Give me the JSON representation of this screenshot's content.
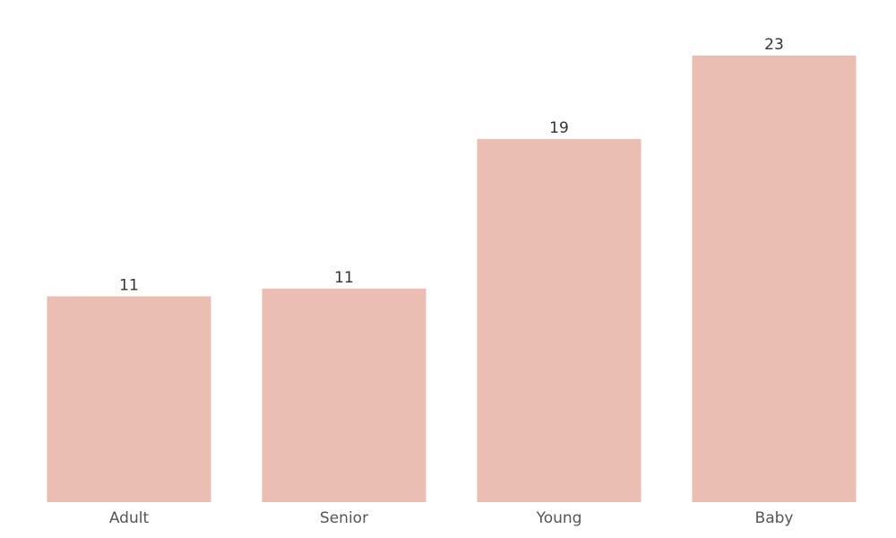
{
  "chart_data": {
    "type": "bar",
    "categories": [
      "Adult",
      "Senior",
      "Young",
      "Baby"
    ],
    "values": [
      10.6,
      11,
      18.7,
      23
    ],
    "value_labels": [
      "11",
      "11",
      "19",
      "23"
    ],
    "ylim": [
      0,
      23
    ],
    "grid": false,
    "legend": "none",
    "colors": {
      "bar": "#ebbeb4",
      "value_text": "#333333",
      "category_text": "#555555"
    }
  }
}
